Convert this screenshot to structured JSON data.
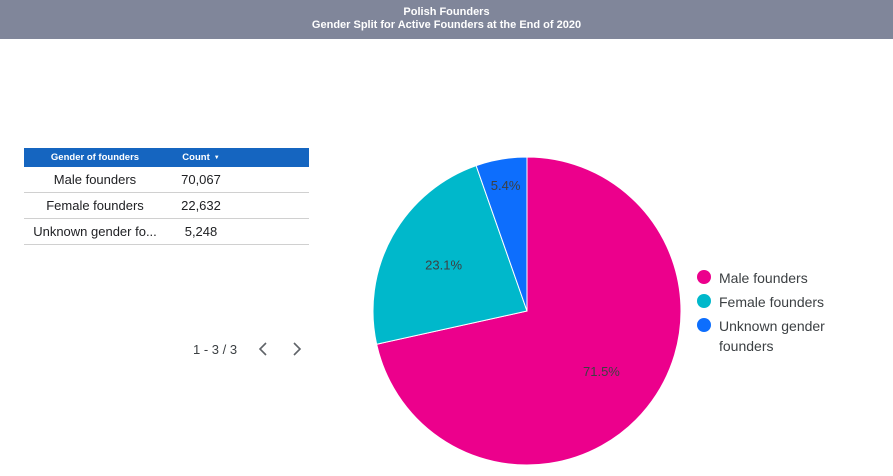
{
  "header": {
    "title": "Polish Founders",
    "subtitle": "Gender Split for Active Founders at the End of 2020"
  },
  "table": {
    "col_gender": "Gender of founders",
    "col_count": "Count",
    "sort_icon": "sort-descending-icon",
    "rows": [
      {
        "gender": "Male founders",
        "count": "70,067"
      },
      {
        "gender": "Female founders",
        "count": "22,632"
      },
      {
        "gender": "Unknown gender fo...",
        "count": "5,248"
      }
    ],
    "header_color": "#1565c0"
  },
  "pager": {
    "range": "1 - 3 / 3",
    "prev_icon": "chevron-left-icon",
    "next_icon": "chevron-right-icon"
  },
  "chart_data": {
    "type": "pie",
    "title": "",
    "categories": [
      "Male founders",
      "Female founders",
      "Unknown gender founders"
    ],
    "values": [
      70067,
      22632,
      5248
    ],
    "percent_labels": [
      "71.5%",
      "23.1%",
      "5.4%"
    ],
    "colors": [
      "#ec008c",
      "#00b8cb",
      "#0d6efd"
    ],
    "legend_position": "right"
  }
}
